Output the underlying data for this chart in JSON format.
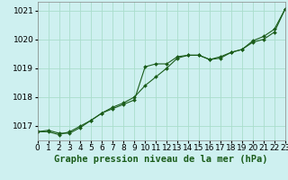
{
  "title": "Graphe pression niveau de la mer (hPa)",
  "bg_color": "#cef0f0",
  "grid_color": "#aaddcc",
  "line_color": "#1a5c1a",
  "x_min": 0,
  "x_max": 23,
  "y_min": 1016.5,
  "y_max": 1021.3,
  "yticks": [
    1017,
    1018,
    1019,
    1020,
    1021
  ],
  "xticks": [
    0,
    1,
    2,
    3,
    4,
    5,
    6,
    7,
    8,
    9,
    10,
    11,
    12,
    13,
    14,
    15,
    16,
    17,
    18,
    19,
    20,
    21,
    22,
    23
  ],
  "series1_x": [
    0,
    1,
    2,
    3,
    4,
    5,
    6,
    7,
    8,
    9,
    10,
    11,
    12,
    13,
    14,
    15,
    16,
    17,
    18,
    19,
    20,
    21,
    22,
    23
  ],
  "series1_y": [
    1016.8,
    1016.8,
    1016.7,
    1016.8,
    1017.0,
    1017.2,
    1017.45,
    1017.65,
    1017.8,
    1018.0,
    1018.4,
    1018.7,
    1019.0,
    1019.35,
    1019.45,
    1019.45,
    1019.3,
    1019.35,
    1019.55,
    1019.65,
    1019.9,
    1020.0,
    1020.25,
    1021.05
  ],
  "series2_x": [
    0,
    1,
    2,
    3,
    4,
    5,
    6,
    7,
    8,
    9,
    10,
    11,
    12,
    13,
    14,
    15,
    16,
    17,
    18,
    19,
    20,
    21,
    22,
    23
  ],
  "series2_y": [
    1016.8,
    1016.85,
    1016.75,
    1016.75,
    1016.95,
    1017.2,
    1017.45,
    1017.6,
    1017.75,
    1017.9,
    1019.05,
    1019.15,
    1019.15,
    1019.4,
    1019.45,
    1019.45,
    1019.3,
    1019.4,
    1019.55,
    1019.65,
    1019.95,
    1020.1,
    1020.35,
    1021.05
  ],
  "tick_fontsize": 6.5,
  "xlabel_fontsize": 7.5,
  "marker": "D",
  "marker_size": 2.0,
  "linewidth": 0.8
}
